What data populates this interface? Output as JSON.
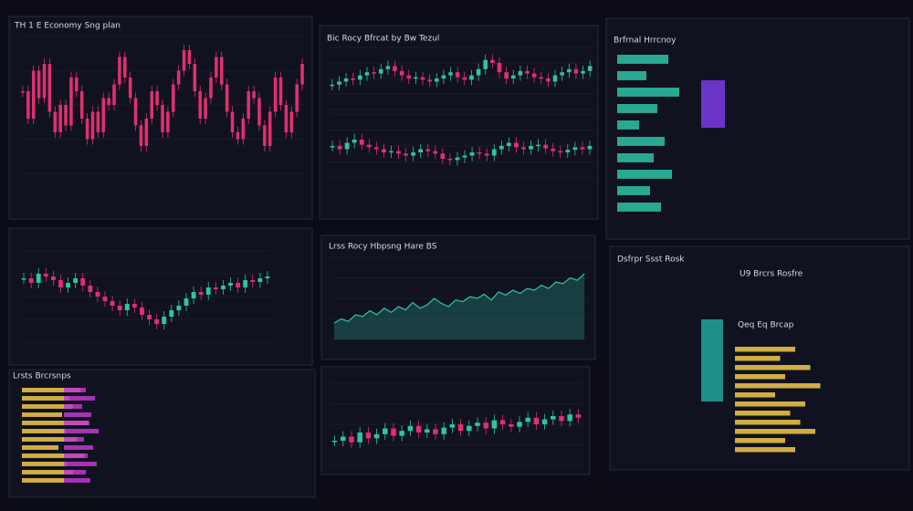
{
  "headings": [
    "TH 1 E Economy Sng plan",
    "Bic Rocy Bfrcat by Bw Tezul",
    "Brfrnal Hrrcnoy",
    "Lrss Rocy Hbpsng Hare BS",
    "Lrsts Brcrsnps",
    "Dsfrpr Ssst Rosk",
    "U9 Brcrs Rosfre",
    "Qeq Eq Brcap"
  ],
  "charts": [
    {
      "kind": "candle",
      "up": "#e0306e",
      "down": "#e0306e",
      "ylim": [
        0,
        100
      ],
      "values": [
        60,
        40,
        75,
        55,
        80,
        45,
        30,
        50,
        35,
        70,
        60,
        40,
        25,
        45,
        30,
        55,
        50,
        65,
        85,
        70,
        55,
        35,
        20,
        40,
        60,
        50,
        30,
        45,
        65,
        75,
        90,
        80,
        60,
        40,
        55,
        70,
        85,
        65,
        45,
        30,
        25,
        40,
        60,
        55,
        35,
        20,
        45,
        70,
        50,
        30,
        45,
        65,
        80
      ]
    },
    {
      "kind": "candle",
      "up": "#2ec4a6",
      "down": "#e0306e",
      "ylim": [
        0,
        100
      ],
      "values": [
        40,
        45,
        50,
        48,
        55,
        60,
        58,
        65,
        70,
        62,
        55,
        50,
        52,
        48,
        45,
        50,
        55,
        60,
        52,
        48,
        55,
        65,
        80,
        75,
        60,
        50,
        55,
        62,
        58,
        52,
        50,
        45,
        55,
        60,
        65,
        58,
        62,
        70
      ]
    },
    {
      "kind": "candle",
      "up": "#2ec4a6",
      "down": "#e0306e",
      "ylim": [
        0,
        100
      ],
      "values": [
        50,
        45,
        55,
        60,
        52,
        48,
        45,
        40,
        42,
        38,
        35,
        40,
        45,
        42,
        38,
        30,
        28,
        32,
        35,
        40,
        38,
        35,
        45,
        50,
        55,
        48,
        45,
        50,
        52,
        46,
        42,
        40,
        44,
        48,
        45,
        50
      ]
    },
    {
      "kind": "candle",
      "up": "#2ec4a6",
      "down": "#e0306e",
      "ylim": [
        0,
        100
      ],
      "values": [
        70,
        65,
        75,
        72,
        68,
        60,
        65,
        70,
        62,
        55,
        50,
        45,
        40,
        35,
        42,
        38,
        30,
        25,
        20,
        28,
        35,
        40,
        48,
        55,
        52,
        60,
        58,
        62,
        65,
        60,
        68,
        66,
        70,
        72
      ]
    },
    {
      "kind": "area",
      "up": "#2ec4a6",
      "down": "#2ec4a6",
      "ylim": [
        0,
        100
      ],
      "values": [
        20,
        25,
        22,
        30,
        28,
        35,
        30,
        38,
        33,
        40,
        36,
        45,
        38,
        42,
        50,
        44,
        40,
        48,
        46,
        52,
        50,
        55,
        48,
        58,
        54,
        60,
        56,
        62,
        60,
        66,
        62,
        70,
        68,
        75,
        72,
        80
      ]
    },
    {
      "kind": "candle",
      "up": "#2ec4a6",
      "down": "#e0306e",
      "ylim": [
        0,
        100
      ],
      "values": [
        30,
        35,
        28,
        40,
        33,
        38,
        45,
        36,
        42,
        48,
        40,
        44,
        38,
        46,
        50,
        42,
        48,
        52,
        45,
        55,
        50,
        47,
        53,
        58,
        50,
        56,
        60,
        54,
        62,
        58
      ]
    }
  ],
  "bars": [
    {
      "color": "#f2c94c",
      "values": [
        80,
        65,
        70,
        55,
        90,
        60,
        75,
        50,
        85,
        62,
        70,
        58
      ]
    },
    {
      "color": "#c03ad0",
      "values": [
        60,
        85,
        50,
        75,
        70,
        95,
        55,
        80,
        65,
        90,
        60,
        72
      ]
    },
    {
      "color": "#f2c94c",
      "values": [
        60,
        45,
        75,
        50,
        85,
        40,
        70,
        55,
        65,
        80,
        50,
        60
      ]
    },
    {
      "color": "#2ec4a6",
      "values": [
        70,
        40,
        85,
        55,
        30,
        65,
        50,
        75,
        45,
        60
      ]
    }
  ]
}
